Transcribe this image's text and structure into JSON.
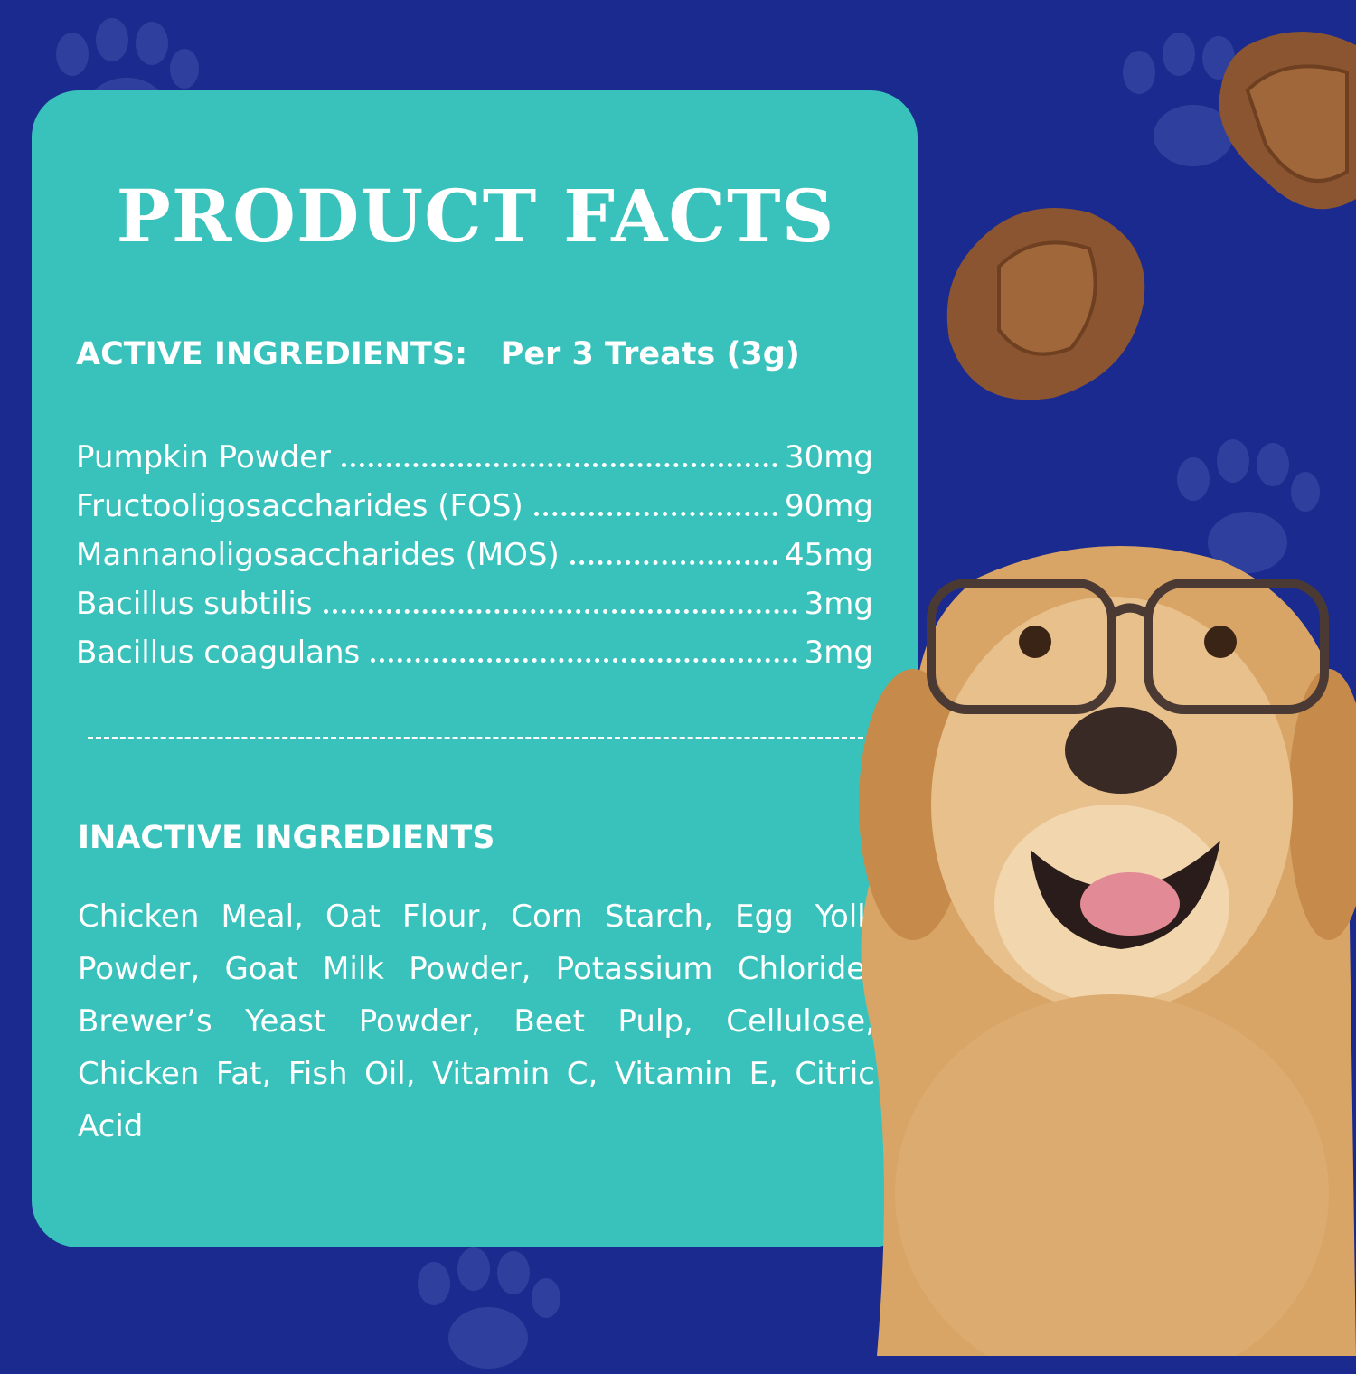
{
  "colors": {
    "background": "#1b2a8e",
    "card": "#38c2bb",
    "text": "#ffffff",
    "treat": "#8a5530",
    "dog": "#d9a566"
  },
  "title": "PRODUCT FACTS",
  "active": {
    "heading": "ACTIVE INGREDIENTS:",
    "serving": "Per 3 Treats (3g)",
    "items": [
      {
        "name": "Pumpkin Powder",
        "amount": "30mg"
      },
      {
        "name": "Fructooligosaccharides (FOS)",
        "amount": "90mg"
      },
      {
        "name": "Mannanoligosaccharides (MOS)",
        "amount": "45mg"
      },
      {
        "name": "Bacillus subtilis",
        "amount": "3mg"
      },
      {
        "name": "Bacillus coagulans",
        "amount": "3mg"
      }
    ]
  },
  "inactive": {
    "heading": "INACTIVE INGREDIENTS",
    "text": "Chicken Meal, Oat Flour, Corn Starch, Egg Yolk Powder, Goat Milk Powder, Potassium Chloride, Brewer’s Yeast Powder, Beet Pulp, Cellulose, Chicken Fat, Fish Oil, Vitamin C, Vitamin E, Citric Acid"
  },
  "images": [
    "paw-print-icon",
    "treat-chew",
    "golden-retriever-with-glasses"
  ]
}
